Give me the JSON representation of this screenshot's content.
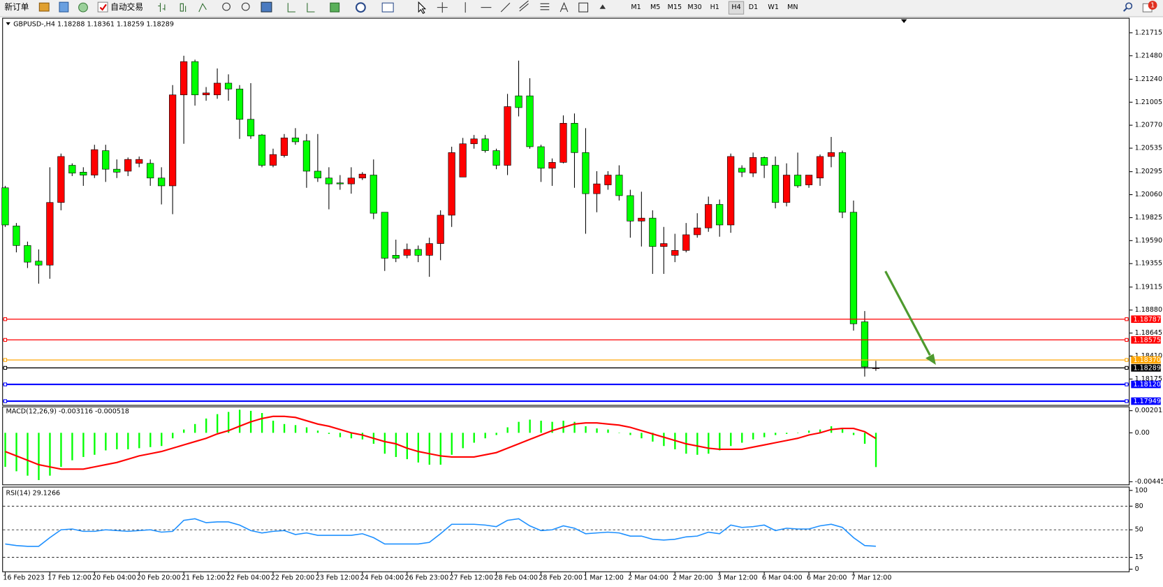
{
  "toolbar": {
    "new_order": "新订单",
    "auto_trading": "自动交易",
    "timeframes": [
      "M1",
      "M5",
      "M15",
      "M30",
      "H1",
      "H4",
      "D1",
      "W1",
      "MN"
    ],
    "selected_timeframe": 5,
    "notification_count": 1
  },
  "chart_data": [
    {
      "type": "candlestick",
      "title": "GBPUSD-,H4  1.18288 1.18361 1.18259 1.18289",
      "categories": [
        "16 Feb 2023",
        null,
        null,
        null,
        "17 Feb 12:00",
        null,
        null,
        null,
        "20 Feb 04:00",
        null,
        null,
        null,
        "20 Feb 20:00",
        null,
        null,
        null,
        "21 Feb 12:00",
        null,
        null,
        null,
        "22 Feb 04:00",
        null,
        null,
        null,
        "22 Feb 20:00",
        null,
        null,
        null,
        "23 Feb 12:00",
        null,
        null,
        null,
        "24 Feb 04:00",
        null,
        null,
        null,
        "26 Feb 23:00",
        null,
        null,
        null,
        "27 Feb 12:00",
        null,
        null,
        null,
        "28 Feb 04:00",
        null,
        null,
        null,
        "28 Feb 20:00",
        null,
        null,
        null,
        "1 Mar 12:00",
        null,
        null,
        null,
        "2 Mar 04:00",
        null,
        null,
        null,
        "2 Mar 20:00",
        null,
        null,
        null,
        "3 Mar 12:00",
        null,
        null,
        null,
        "6 Mar 04:00",
        null,
        null,
        null,
        "6 Mar 20:00",
        null,
        null,
        null,
        "7 Mar 12:00",
        null,
        null
      ],
      "open": [
        1.2013,
        1.1974,
        1.1954,
        1.1938,
        1.1934,
        1.1998,
        1.2036,
        1.2029,
        1.2026,
        1.2051,
        1.2032,
        1.203,
        1.2038,
        1.2038,
        1.2023,
        1.2015,
        1.2108,
        1.2142,
        1.2108,
        1.2108,
        1.212,
        1.2114,
        1.2083,
        1.2067,
        1.2036,
        1.2046,
        1.2064,
        1.2061,
        1.203,
        1.2023,
        1.2018,
        1.2017,
        1.2023,
        1.2026,
        1.1988,
        1.1944,
        1.1944,
        1.195,
        1.1944,
        1.1956,
        1.1985,
        1.2024,
        1.2058,
        1.2063,
        1.2051,
        1.2036,
        1.2107,
        1.2107,
        1.2055,
        1.2033,
        1.2039,
        1.2079,
        1.2049,
        1.2007,
        1.2016,
        1.2026,
        1.2005,
        1.1979,
        1.1982,
        1.1953,
        1.1944,
        1.1949,
        1.1965,
        1.1972,
        1.1996,
        1.1975,
        1.2033,
        1.2028,
        1.2044,
        1.2036,
        1.1998,
        1.2026,
        1.2016,
        1.2023,
        1.2045,
        1.2049,
        1.1988,
        1.1876,
        1.18288
      ],
      "high": [
        1.2015,
        1.1977,
        1.1958,
        1.195,
        1.2034,
        1.2048,
        1.2038,
        1.2034,
        1.2057,
        1.2057,
        1.2042,
        1.2044,
        1.2045,
        1.2042,
        1.2034,
        1.2118,
        1.2148,
        1.2144,
        1.2116,
        1.2135,
        1.2129,
        1.2118,
        1.212,
        1.2068,
        1.2053,
        1.2068,
        1.2074,
        1.2068,
        1.2068,
        1.2034,
        1.2026,
        1.2034,
        1.2029,
        1.2042,
        1.1988,
        1.196,
        1.1956,
        1.1954,
        1.1962,
        1.199,
        1.2055,
        1.2064,
        1.2067,
        1.2067,
        1.2053,
        1.2109,
        1.2143,
        1.2125,
        1.2057,
        1.2043,
        1.2087,
        1.2089,
        1.2074,
        1.203,
        1.203,
        1.2036,
        1.2011,
        1.2009,
        1.199,
        1.1973,
        1.1966,
        1.1977,
        1.1987,
        1.2004,
        1.2001,
        1.2048,
        1.2036,
        1.2049,
        1.2045,
        1.2045,
        1.2038,
        1.2049,
        1.2026,
        1.2047,
        1.2065,
        1.2051,
        1.2,
        1.1887,
        1.18361
      ],
      "low": [
        1.1973,
        1.1947,
        1.1931,
        1.1915,
        1.192,
        1.199,
        1.2025,
        1.2015,
        1.2023,
        1.2019,
        1.2023,
        1.2025,
        1.2034,
        1.2015,
        1.1996,
        1.1986,
        1.2058,
        1.2097,
        1.2102,
        1.2104,
        1.2102,
        1.2063,
        1.2063,
        1.2034,
        1.2034,
        1.2044,
        1.2057,
        1.2013,
        1.2019,
        1.1991,
        1.2011,
        1.2007,
        1.2021,
        1.1981,
        1.1928,
        1.1937,
        1.1941,
        1.1937,
        1.1922,
        1.1939,
        1.1973,
        1.2024,
        1.2053,
        1.2049,
        1.2032,
        1.2026,
        1.2086,
        1.2053,
        1.2019,
        1.2015,
        1.2038,
        1.2013,
        1.1966,
        1.1988,
        1.2011,
        1.2,
        1.1962,
        1.1953,
        1.1925,
        1.1925,
        1.1937,
        1.1947,
        1.1962,
        1.1968,
        1.1963,
        1.1967,
        1.2024,
        1.2024,
        1.2023,
        1.1992,
        1.1994,
        1.2013,
        1.2013,
        1.2015,
        1.2034,
        1.1982,
        1.1867,
        1.182,
        1.18259
      ],
      "close": [
        1.1975,
        1.1954,
        1.1937,
        1.1934,
        1.1998,
        1.2045,
        1.2028,
        1.2026,
        1.2052,
        1.2032,
        1.2029,
        1.2042,
        1.2042,
        1.2023,
        1.2015,
        1.2108,
        1.2142,
        1.2108,
        1.211,
        1.212,
        1.2114,
        1.2083,
        1.2066,
        1.2036,
        1.2047,
        1.2064,
        1.206,
        1.203,
        1.2023,
        1.2017,
        1.2017,
        1.2023,
        1.2027,
        1.1987,
        1.1941,
        1.1941,
        1.195,
        1.1944,
        1.1956,
        1.1985,
        1.2049,
        1.2058,
        1.2063,
        1.2051,
        1.2036,
        1.2096,
        1.2095,
        1.2055,
        1.2033,
        1.2039,
        1.2079,
        1.2049,
        1.2007,
        1.2017,
        1.2026,
        1.2005,
        1.1979,
        1.1982,
        1.1953,
        1.1956,
        1.1949,
        1.1965,
        1.1972,
        1.1996,
        1.1975,
        1.2045,
        1.2029,
        1.2044,
        1.2036,
        1.1998,
        1.2026,
        1.2015,
        1.2026,
        1.2045,
        1.2049,
        1.1988,
        1.1874,
        1.183,
        1.18289
      ],
      "up_color": "#ff0000",
      "down_color": "#00ff00",
      "ylim": [
        1.1791,
        1.2186
      ],
      "yticks": [
        1.21715,
        {
          "value": 1.2148,
          "label": "1.21480"
        },
        {
          "value": 1.2124,
          "label": "1.21240"
        },
        1.21005,
        {
          "value": 1.2077,
          "label": "1.20770"
        },
        1.20535,
        1.20295,
        {
          "value": 1.2006,
          "label": "1.20060"
        },
        1.19825,
        {
          "value": 1.1959,
          "label": "1.19590"
        },
        1.19355,
        1.19115,
        {
          "value": 1.1888,
          "label": "1.18880"
        },
        1.18645,
        {
          "value": 1.1841,
          "label": "1.18410"
        },
        1.18175
      ],
      "hlines": [
        {
          "value": 1.18787,
          "color": "#ff0000"
        },
        {
          "value": 1.18575,
          "color": "#ff0000"
        },
        {
          "value": 1.1837,
          "label": "1.18370",
          "color": "#ffa500"
        },
        {
          "value": 1.18289,
          "color": "#000000"
        },
        {
          "value": 1.1812,
          "label": "1.18120",
          "color": "#0000ff"
        },
        {
          "value": 1.17949,
          "color": "#0000ff"
        }
      ]
    },
    {
      "type": "macd",
      "title": "MACD(12,26,9) -0.003116 -0.000518",
      "ylim": [
        -0.0047,
        0.0024
      ],
      "yticks": [
        0.002015,
        {
          "value": 0,
          "label": "0.00"
        },
        -0.004451
      ],
      "histogram": {
        "color": "#00ff00",
        "values": [
          -0.0031,
          -0.0035,
          -0.0039,
          -0.0043,
          -0.0039,
          -0.0031,
          -0.0025,
          -0.0022,
          -0.002,
          -0.0016,
          -0.0015,
          -0.0015,
          -0.0014,
          -0.0013,
          -0.0012,
          -0.0005,
          0.0003,
          0.0008,
          0.0013,
          0.0017,
          0.0019,
          0.0021,
          0.002,
          0.0018,
          0.0011,
          0.0008,
          0.0007,
          0.0005,
          0.0002,
          -0.0001,
          -0.0004,
          -0.0005,
          -0.0006,
          -0.001,
          -0.0019,
          -0.0022,
          -0.0024,
          -0.0027,
          -0.0029,
          -0.0029,
          -0.002,
          -0.0014,
          -0.0009,
          -0.0005,
          -0.0002,
          0.0005,
          0.001,
          0.0012,
          0.0011,
          0.001,
          0.0011,
          0.001,
          0.0006,
          0.0004,
          0.0003,
          0,
          -0.0002,
          -0.0005,
          -0.0008,
          -0.0012,
          -0.0015,
          -0.0019,
          -0.002,
          -0.0019,
          -0.0016,
          -0.0012,
          -0.0009,
          -0.0006,
          -0.0004,
          -0.0002,
          -0.0001,
          0,
          0.0002,
          0.0003,
          0.0006,
          0.0004,
          -0.0002,
          -0.001,
          -0.003116
        ]
      },
      "signal": {
        "color": "#ff0000",
        "values": [
          -0.0017,
          -0.0021,
          -0.0025,
          -0.0029,
          -0.0031,
          -0.0033,
          -0.0033,
          -0.0033,
          -0.0031,
          -0.0029,
          -0.0027,
          -0.0024,
          -0.0021,
          -0.0019,
          -0.0017,
          -0.0014,
          -0.0011,
          -0.0008,
          -0.0005,
          -0.0001,
          0.0002,
          0.0006,
          0.001,
          0.0013,
          0.0015,
          0.0015,
          0.0014,
          0.0011,
          0.0008,
          0.0006,
          0.0003,
          0,
          -0.0002,
          -0.0005,
          -0.0008,
          -0.001,
          -0.0014,
          -0.0017,
          -0.0019,
          -0.0021,
          -0.0022,
          -0.0022,
          -0.0022,
          -0.002,
          -0.0018,
          -0.0014,
          -0.001,
          -0.0006,
          -0.0002,
          0.0002,
          0.0005,
          0.0008,
          0.0009,
          0.0009,
          0.0008,
          0.0007,
          0.0005,
          0.0002,
          -0.0001,
          -0.0004,
          -0.0007,
          -0.001,
          -0.0012,
          -0.0014,
          -0.0015,
          -0.0015,
          -0.0015,
          -0.0013,
          -0.0011,
          -0.0009,
          -0.0007,
          -0.0005,
          -0.0002,
          0,
          0.0003,
          0.0004,
          0.0004,
          0.0001,
          -0.000518
        ]
      }
    },
    {
      "type": "line",
      "title": "RSI(14) 29.1266",
      "color": "#1e90ff",
      "ylim": [
        0,
        100
      ],
      "yticks": [
        100,
        80,
        50,
        15,
        0
      ],
      "levels": [
        80,
        50,
        15
      ],
      "values": [
        32,
        30,
        29,
        29,
        40,
        50,
        51,
        48,
        48,
        50,
        49,
        48,
        49,
        50,
        47,
        48,
        62,
        64,
        59,
        60,
        60,
        56,
        49,
        46,
        48,
        49,
        44,
        46,
        43,
        43,
        43,
        43,
        45,
        40,
        32,
        32,
        32,
        32,
        34,
        45,
        57,
        57,
        57,
        56,
        54,
        62,
        64,
        55,
        49,
        50,
        55,
        52,
        45,
        46,
        47,
        46,
        42,
        42,
        38,
        37,
        38,
        41,
        42,
        47,
        45,
        56,
        53,
        54,
        56,
        49,
        52,
        51,
        51,
        55,
        57,
        53,
        40,
        30,
        29.1266
      ]
    }
  ]
}
